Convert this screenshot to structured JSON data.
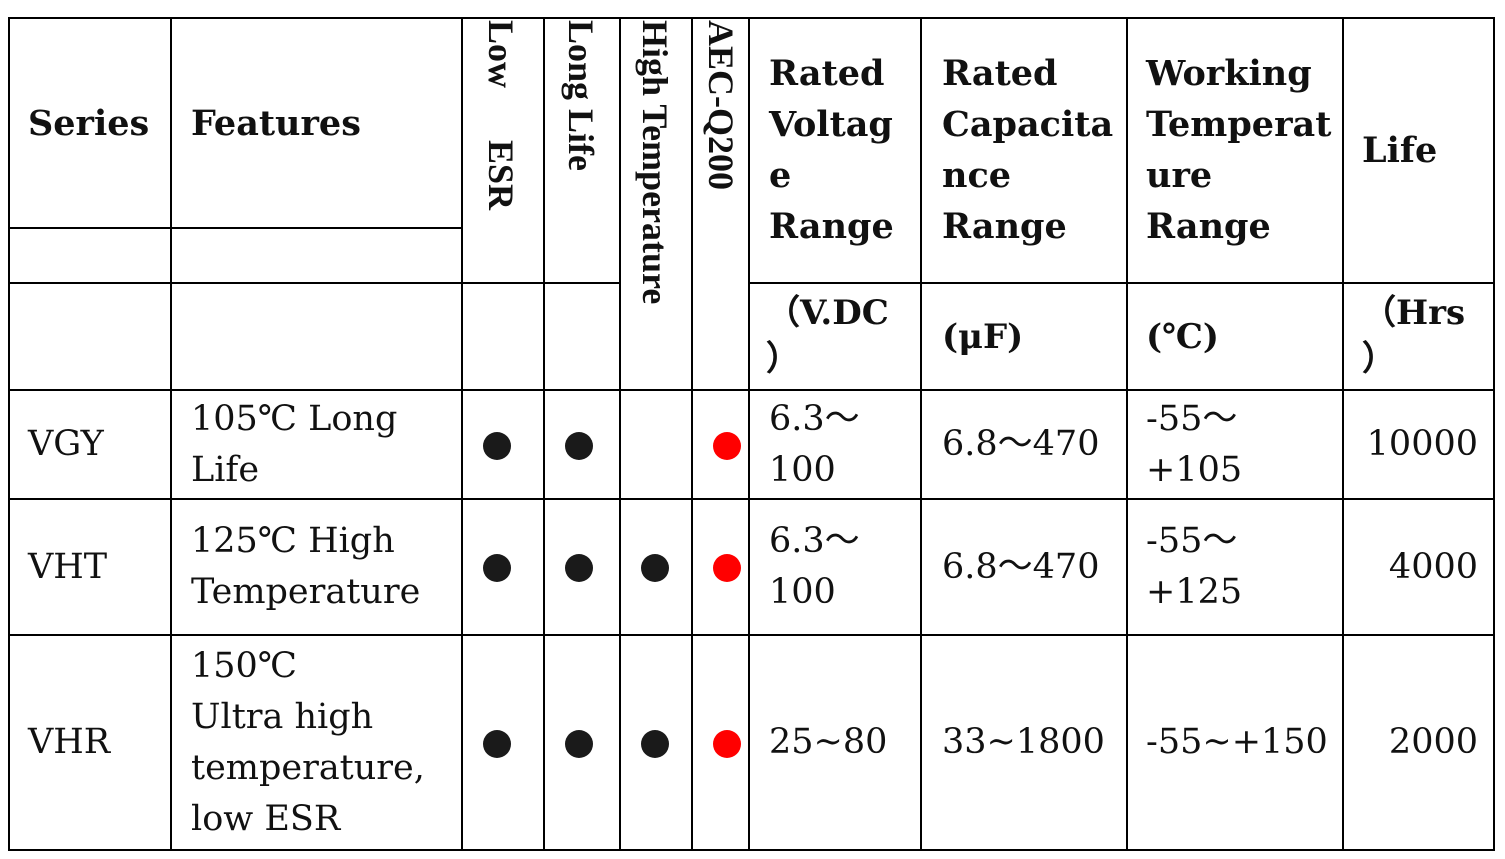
{
  "colors": {
    "dot_black": "#1a1a1a",
    "dot_aec": "#ff0000"
  },
  "header": {
    "series": "Series",
    "features": "Features",
    "low_esr": [
      "Low",
      "ESR"
    ],
    "long_life": "Long Life",
    "high_temperature": "High Temperature",
    "aec_q200": "AEC-Q200",
    "rated_voltage": [
      "Rated",
      "Voltag",
      "e",
      "Range"
    ],
    "rated_capacitance": [
      "Rated",
      "Capacita",
      "nce",
      "Range"
    ],
    "working_temperature": [
      "Working",
      "Temperat",
      "ure",
      "Range"
    ],
    "life": "Life"
  },
  "units": {
    "voltage": [
      "（V.DC",
      "）"
    ],
    "capacitance": "(μF)",
    "temperature": "(℃)",
    "life": [
      "（Hrs",
      "）"
    ]
  },
  "rows": [
    {
      "series": "VGY",
      "features": [
        "105℃ Long",
        "Life"
      ],
      "low_esr": "filled-circle-icon",
      "long_life": "filled-circle-icon",
      "high_temperature": "",
      "aec_q200": "red-circle-icon",
      "voltage": [
        "6.3～",
        "100"
      ],
      "capacitance": "6.8～470",
      "temperature": [
        "-55～",
        "+105"
      ],
      "life": "10000"
    },
    {
      "series": "VHT",
      "features": [
        "125℃ High",
        "Temperature"
      ],
      "low_esr": "filled-circle-icon",
      "long_life": "filled-circle-icon",
      "high_temperature": "filled-circle-icon",
      "aec_q200": "red-circle-icon",
      "voltage": [
        "6.3～",
        "100"
      ],
      "capacitance": "6.8～470",
      "temperature": [
        "-55～",
        "+125"
      ],
      "life": "4000"
    },
    {
      "series": "VHR",
      "features": [
        "150℃",
        "Ultra high",
        "temperature,",
        "low ESR"
      ],
      "low_esr": "filled-circle-icon",
      "long_life": "filled-circle-icon",
      "high_temperature": "filled-circle-icon",
      "aec_q200": "red-circle-icon",
      "voltage": [
        "25~80"
      ],
      "capacitance": "33~1800",
      "temperature": [
        "-55~+150"
      ],
      "life": "2000"
    }
  ]
}
